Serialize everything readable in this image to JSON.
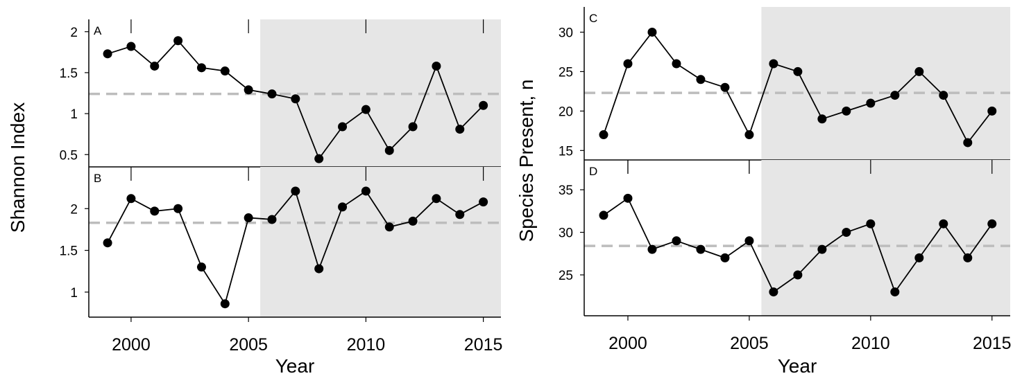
{
  "chart_data": [
    {
      "type": "line",
      "panel": "A",
      "x": [
        1999,
        2000,
        2001,
        2002,
        2003,
        2004,
        2005,
        2006,
        2007,
        2008,
        2009,
        2010,
        2011,
        2012,
        2013,
        2014,
        2015
      ],
      "values": [
        1.73,
        1.82,
        1.58,
        1.89,
        1.56,
        1.52,
        1.29,
        1.24,
        1.18,
        0.45,
        0.84,
        1.05,
        0.55,
        0.84,
        1.58,
        0.81,
        1.1
      ],
      "mean": 1.24,
      "shaded_x": [
        2005.5,
        2015.75
      ],
      "xlim": [
        1998.2,
        2015.75
      ],
      "ylim": [
        0.35,
        2.15
      ],
      "yticks": [
        "0.5",
        "1",
        "1.5",
        "2"
      ]
    },
    {
      "type": "line",
      "panel": "B",
      "x": [
        1999,
        2000,
        2001,
        2002,
        2003,
        2004,
        2005,
        2006,
        2007,
        2008,
        2009,
        2010,
        2011,
        2012,
        2013,
        2014,
        2015
      ],
      "values": [
        1.59,
        2.12,
        1.97,
        2.0,
        1.3,
        0.86,
        1.89,
        1.87,
        2.21,
        1.28,
        2.02,
        2.21,
        1.78,
        1.85,
        2.12,
        1.93,
        2.08
      ],
      "mean": 1.83,
      "shaded_x": [
        2005.5,
        2015.75
      ],
      "xlim": [
        1998.2,
        2015.75
      ],
      "ylim": [
        0.7,
        2.5
      ],
      "yticks": [
        "1",
        "1.5",
        "2"
      ],
      "xticks": [
        "2000",
        "2005",
        "2010",
        "2015"
      ]
    },
    {
      "type": "line",
      "panel": "C",
      "x": [
        1999,
        2000,
        2001,
        2002,
        2003,
        2004,
        2005,
        2006,
        2007,
        2008,
        2009,
        2010,
        2011,
        2012,
        2013,
        2014,
        2015
      ],
      "values": [
        17,
        26,
        30,
        26,
        24,
        23,
        17,
        26,
        25,
        19,
        20,
        21,
        22,
        25,
        22,
        16,
        20
      ],
      "mean": 22.3,
      "shaded_x": [
        2005.5,
        2015.75
      ],
      "xlim": [
        1998.2,
        2015.75
      ],
      "ylim": [
        13.8,
        33.2
      ],
      "yticks": [
        "15",
        "20",
        "25",
        "30"
      ]
    },
    {
      "type": "line",
      "panel": "D",
      "x": [
        1999,
        2000,
        2001,
        2002,
        2003,
        2004,
        2005,
        2006,
        2007,
        2008,
        2009,
        2010,
        2011,
        2012,
        2013,
        2014,
        2015
      ],
      "values": [
        32,
        34,
        28,
        29,
        28,
        27,
        29,
        23,
        25,
        28,
        30,
        31,
        23,
        27,
        31,
        27,
        31
      ],
      "mean": 28.4,
      "shaded_x": [
        2005.5,
        2015.75
      ],
      "xlim": [
        1998.2,
        2015.75
      ],
      "ylim": [
        20.2,
        38.5
      ],
      "yticks": [
        "25",
        "30",
        "35"
      ],
      "xticks": [
        "2000",
        "2005",
        "2010",
        "2015"
      ]
    }
  ],
  "labels": {
    "left_ylabel": "Shannon Index",
    "right_ylabel": "Species Present, n",
    "xlabel": "Year"
  },
  "colors": {
    "shade": "#e6e6e6",
    "mean_line": "#bdbdbd",
    "series": "#000000"
  }
}
